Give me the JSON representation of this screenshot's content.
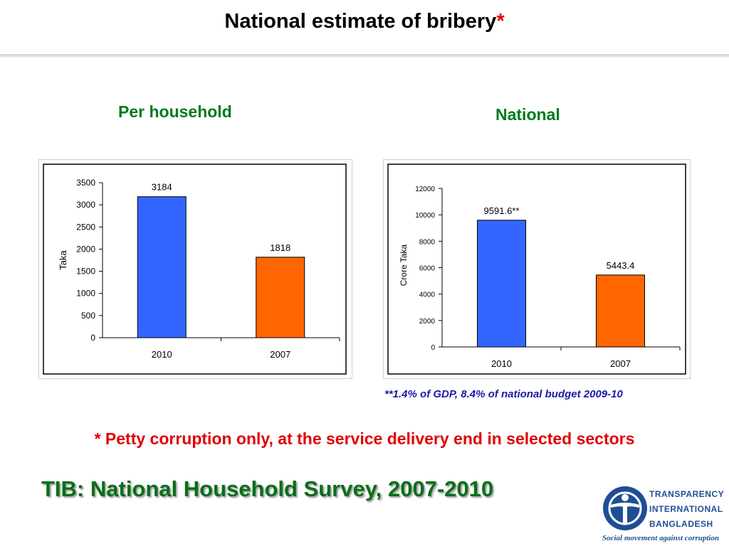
{
  "slide": {
    "title": "National estimate of bribery",
    "title_mark": "*",
    "footnote": "* Petty corruption only, at the service delivery end in selected sectors",
    "source": "TIB: National Household Survey, 2007-2010",
    "note": "**1.4% of GDP, 8.4% of national budget 2009-10"
  },
  "logo": {
    "line1": "TRANSPARENCY",
    "line2": "INTERNATIONAL",
    "line3": "BANGLADESH",
    "tagline": "Social movement against corruption"
  },
  "colors": {
    "series_2010": "#3366ff",
    "series_2007": "#ff6600",
    "title_green": "#007a1e",
    "accent_red": "#e00000"
  },
  "chart_data": [
    {
      "type": "bar",
      "title": "Per household",
      "ylabel": "Taka",
      "categories": [
        "2010",
        "2007"
      ],
      "values": [
        3184,
        1818
      ],
      "data_labels": [
        "3184",
        "1818"
      ],
      "bar_colors": [
        "#3366ff",
        "#ff6600"
      ],
      "ylim": [
        0,
        3500
      ],
      "yticks": [
        0,
        500,
        1000,
        1500,
        2000,
        2500,
        3000,
        3500
      ],
      "grid": false,
      "legend": "none"
    },
    {
      "type": "bar",
      "title": "National",
      "ylabel": "Crore Taka",
      "categories": [
        "2010",
        "2007"
      ],
      "values": [
        9591.6,
        5443.4
      ],
      "data_labels": [
        "9591.6**",
        "5443.4"
      ],
      "bar_colors": [
        "#3366ff",
        "#ff6600"
      ],
      "ylim": [
        0,
        12000
      ],
      "yticks": [
        0,
        2000,
        4000,
        6000,
        8000,
        10000,
        12000
      ],
      "grid": false,
      "legend": "none"
    }
  ]
}
